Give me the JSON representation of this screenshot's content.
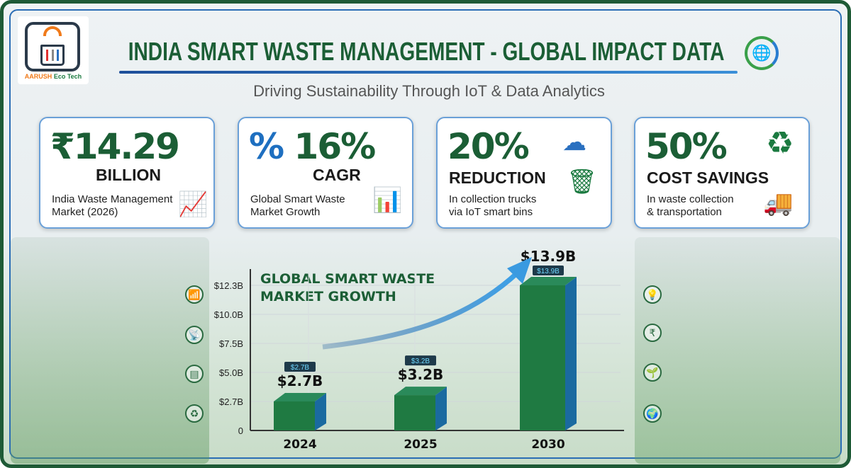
{
  "logo": {
    "brand_a": "AARUSH",
    "brand_b": "Eco Tech"
  },
  "header": {
    "title": "INDIA SMART WASTE MANAGEMENT - GLOBAL IMPACT DATA",
    "subtitle": "Driving Sustainability Through IoT & Data Analytics"
  },
  "cards": [
    {
      "symbol": "₹",
      "value": "14.29",
      "label": "BILLION",
      "desc1": "India Waste Management",
      "desc2": "Market (2026)",
      "icon": "coins-growth-icon"
    },
    {
      "symbol": "%",
      "value": "16%",
      "label": "CAGR",
      "desc1": "Global Smart Waste",
      "desc2": "Market Growth",
      "icon": "growth-chart-gear-icon"
    },
    {
      "value": "20%",
      "label": "REDUCTION",
      "desc1": "In collection trucks",
      "desc2": "via IoT smart bins",
      "icon": "cloud-smart-bin-icon"
    },
    {
      "value": "50%",
      "label": "COST SAVINGS",
      "desc1": "In waste collection",
      "desc2": "& transportation",
      "icon": "recycle-truck-icon"
    }
  ],
  "colors": {
    "primary_green": "#1b5e35",
    "accent_blue": "#2a6db5",
    "bar_green": "#1f7a42",
    "bar_side": "#1a6aa0"
  },
  "chart_data": {
    "type": "bar",
    "title": "GLOBAL SMART WASTE MARKET GROWTH",
    "categories": [
      "2024",
      "2025",
      "2030"
    ],
    "values": [
      2.7,
      3.2,
      13.9
    ],
    "data_labels": [
      "$2.7B",
      "$3.2B",
      "$13.9B"
    ],
    "y_ticks": [
      "0",
      "$2.7B",
      "$5.0B",
      "$7.5B",
      "$10.0B",
      "$12.3B"
    ],
    "ylim": [
      0,
      12.3
    ],
    "grid": true,
    "annotation": "upward trend arrow"
  }
}
